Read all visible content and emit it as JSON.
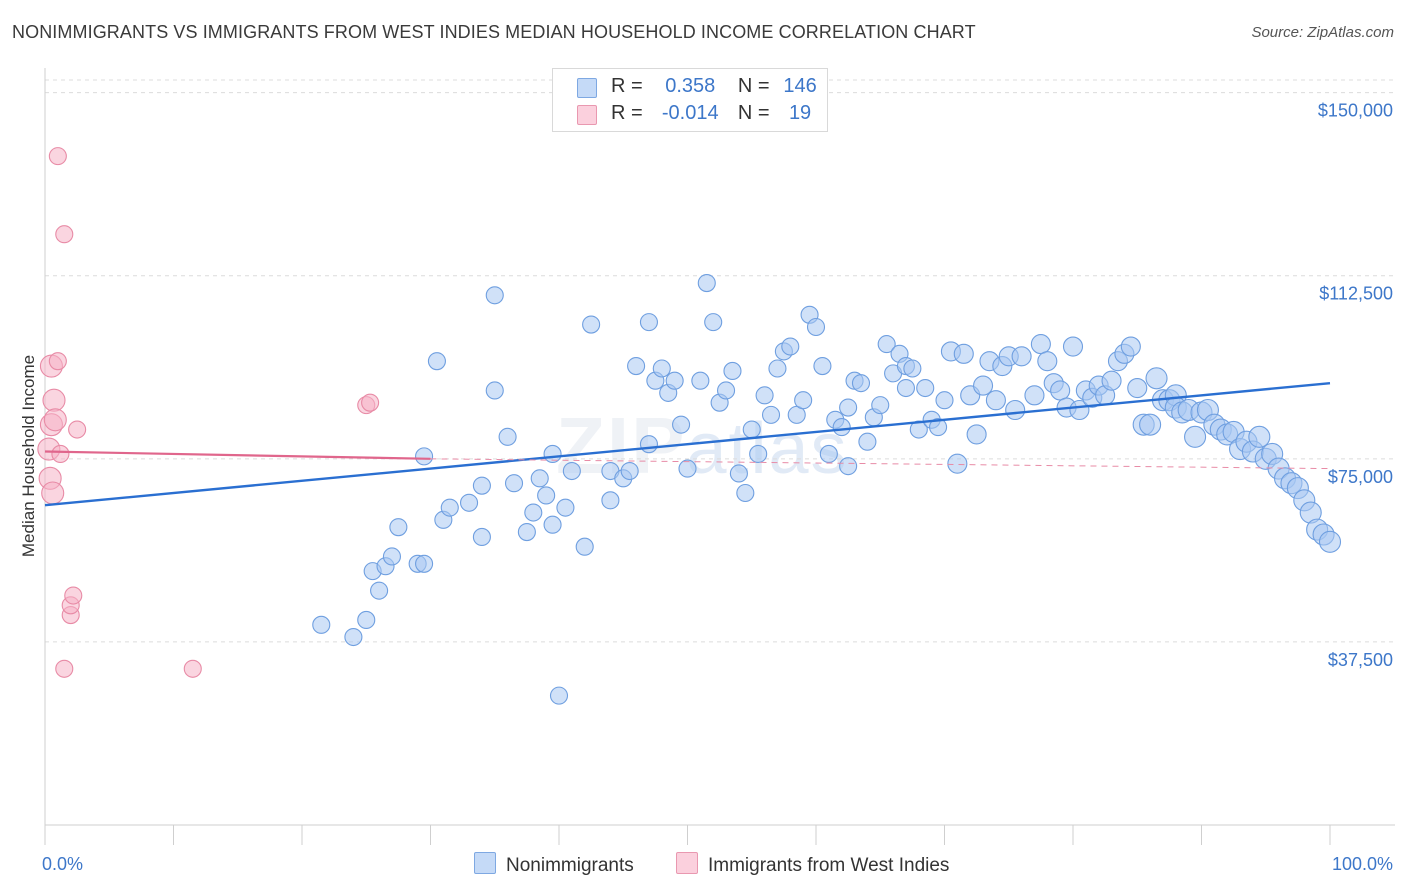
{
  "title": "NONIMMIGRANTS VS IMMIGRANTS FROM WEST INDIES MEDIAN HOUSEHOLD INCOME CORRELATION CHART",
  "source": "Source: ZipAtlas.com",
  "watermark": {
    "zip": "ZIP",
    "atlas": "atlas"
  },
  "legend": {
    "rows": [
      {
        "r_label": "R =",
        "r_value": "0.358",
        "n_label": "N =",
        "n_value": "146",
        "color": "#a9c8f3"
      },
      {
        "r_label": "R =",
        "r_value": "-0.014",
        "n_label": "N =",
        "n_value": "19",
        "color": "#f5b3c6"
      }
    ]
  },
  "bottom_legend": {
    "series1": "Nonimmigrants",
    "series2": "Immigrants from West Indies"
  },
  "chart_data": {
    "type": "scatter",
    "xlabel": "",
    "ylabel": "Median Household Income",
    "x_tick_labels": [
      "0.0%",
      "100.0%"
    ],
    "y_tick_labels": [
      "$37,500",
      "$75,000",
      "$112,500",
      "$150,000"
    ],
    "y_ticks": [
      37500,
      75000,
      112500,
      150000
    ],
    "xlim": [
      0,
      100
    ],
    "ylim": [
      0,
      153000
    ],
    "grid": true,
    "series": [
      {
        "name": "Nonimmigrants",
        "color": "#6f9fe0",
        "fill": "#a9c8f3",
        "trend": {
          "x": [
            0,
            100
          ],
          "y": [
            65500,
            90500
          ]
        },
        "points": [
          [
            21.5,
            41
          ],
          [
            24,
            38.5
          ],
          [
            25,
            42
          ],
          [
            25.5,
            52
          ],
          [
            26,
            48
          ],
          [
            26.5,
            53
          ],
          [
            27,
            55
          ],
          [
            27.5,
            61
          ],
          [
            29,
            53.5
          ],
          [
            29.5,
            53.5
          ],
          [
            29.5,
            75.5
          ],
          [
            30.5,
            95
          ],
          [
            31,
            62.5
          ],
          [
            31.5,
            65
          ],
          [
            33,
            66
          ],
          [
            34,
            69.5
          ],
          [
            35,
            108.5
          ],
          [
            35,
            89
          ],
          [
            36,
            79.5
          ],
          [
            34,
            59
          ],
          [
            36.5,
            70
          ],
          [
            37.5,
            60
          ],
          [
            38,
            64
          ],
          [
            38.5,
            71
          ],
          [
            39,
            67.5
          ],
          [
            39.5,
            61.5
          ],
          [
            39.5,
            76
          ],
          [
            40.5,
            65
          ],
          [
            41,
            72.5
          ],
          [
            42,
            57
          ],
          [
            40,
            26.5
          ],
          [
            42.5,
            102.5
          ],
          [
            44,
            72.5
          ],
          [
            44,
            66.5
          ],
          [
            45,
            71
          ],
          [
            45.5,
            72.5
          ],
          [
            46,
            94
          ],
          [
            47,
            103
          ],
          [
            47,
            78
          ],
          [
            47.5,
            91
          ],
          [
            48,
            93.5
          ],
          [
            48.5,
            88.5
          ],
          [
            49,
            91
          ],
          [
            49.5,
            82
          ],
          [
            50,
            73
          ],
          [
            51,
            91
          ],
          [
            51.5,
            111
          ],
          [
            52,
            103
          ],
          [
            52.5,
            86.5
          ],
          [
            53,
            89
          ],
          [
            53.5,
            93
          ],
          [
            54,
            72
          ],
          [
            54.5,
            68
          ],
          [
            55,
            81
          ],
          [
            55.5,
            76
          ],
          [
            56,
            88
          ],
          [
            56.5,
            84
          ],
          [
            57,
            93.5
          ],
          [
            57.5,
            97
          ],
          [
            58,
            98
          ],
          [
            58.5,
            84
          ],
          [
            59,
            87
          ],
          [
            59.5,
            104.5
          ],
          [
            60,
            102
          ],
          [
            60.5,
            94
          ],
          [
            61,
            76
          ],
          [
            61.5,
            83
          ],
          [
            62,
            81.5
          ],
          [
            62.5,
            85.5
          ],
          [
            63,
            91
          ],
          [
            63.5,
            90.5
          ],
          [
            64,
            78.5
          ],
          [
            64.5,
            83.5
          ],
          [
            65,
            86
          ],
          [
            65.5,
            98.5
          ],
          [
            66,
            92.5
          ],
          [
            66.5,
            96.5
          ],
          [
            67,
            94
          ],
          [
            67,
            89.5
          ],
          [
            67.5,
            93.5
          ],
          [
            68,
            81
          ],
          [
            68.5,
            89.5
          ],
          [
            69,
            83
          ],
          [
            69.5,
            81.5
          ],
          [
            70,
            87
          ],
          [
            70.5,
            97
          ],
          [
            71,
            74
          ],
          [
            71.5,
            96.5
          ],
          [
            72,
            88
          ],
          [
            72.5,
            80
          ],
          [
            73,
            90
          ],
          [
            73.5,
            95
          ],
          [
            74,
            87
          ],
          [
            74.5,
            94
          ],
          [
            75,
            96
          ],
          [
            75.5,
            85
          ],
          [
            76,
            96
          ],
          [
            77,
            88
          ],
          [
            77.5,
            98.5
          ],
          [
            78,
            95
          ],
          [
            78.5,
            90.5
          ],
          [
            79,
            89
          ],
          [
            79.5,
            85.5
          ],
          [
            80,
            98
          ],
          [
            80.5,
            85
          ],
          [
            81,
            89
          ],
          [
            81.5,
            87.5
          ],
          [
            82,
            90
          ],
          [
            82.5,
            88
          ],
          [
            83,
            91
          ],
          [
            83.5,
            95
          ],
          [
            84,
            96.5
          ],
          [
            84.5,
            98
          ],
          [
            85,
            89.5
          ],
          [
            85.5,
            82
          ],
          [
            86,
            82
          ],
          [
            86.5,
            91.5
          ],
          [
            87,
            87
          ],
          [
            87.5,
            87
          ],
          [
            88,
            88
          ],
          [
            88,
            85.5
          ],
          [
            88.5,
            84.5
          ],
          [
            89,
            85
          ],
          [
            89.5,
            79.5
          ],
          [
            90,
            84.5
          ],
          [
            90.5,
            85
          ],
          [
            91,
            82
          ],
          [
            91.5,
            81
          ],
          [
            92,
            80
          ],
          [
            92.5,
            80.5
          ],
          [
            93,
            77
          ],
          [
            93.5,
            78.5
          ],
          [
            94,
            76.5
          ],
          [
            94.5,
            79.5
          ],
          [
            95,
            75
          ],
          [
            95.5,
            76
          ],
          [
            96,
            73
          ],
          [
            96.5,
            71
          ],
          [
            97,
            70
          ],
          [
            97.5,
            69
          ],
          [
            98,
            66.5
          ],
          [
            98.5,
            64
          ],
          [
            99,
            60.5
          ],
          [
            99.5,
            59.5
          ],
          [
            100,
            58
          ],
          [
            62.5,
            73.5
          ]
        ]
      },
      {
        "name": "Immigrants from West Indies",
        "color": "#e88ba6",
        "fill": "#f5b3c6",
        "trend": {
          "x": [
            0,
            30
          ],
          "y": [
            76500,
            75000
          ]
        },
        "trend_dashed": {
          "x": [
            30,
            100
          ],
          "y": [
            75000,
            73000
          ]
        },
        "points": [
          [
            0.3,
            77
          ],
          [
            0.4,
            71
          ],
          [
            0.5,
            82
          ],
          [
            0.6,
            68
          ],
          [
            0.5,
            94
          ],
          [
            0.7,
            87
          ],
          [
            0.8,
            83
          ],
          [
            1,
            95
          ],
          [
            1.2,
            76
          ],
          [
            1.5,
            32
          ],
          [
            2,
            43
          ],
          [
            2,
            45
          ],
          [
            2.2,
            47
          ],
          [
            2.5,
            81
          ],
          [
            1,
            137
          ],
          [
            1.5,
            121
          ],
          [
            11.5,
            32
          ],
          [
            25,
            86
          ],
          [
            25.3,
            86.5
          ]
        ]
      }
    ]
  }
}
